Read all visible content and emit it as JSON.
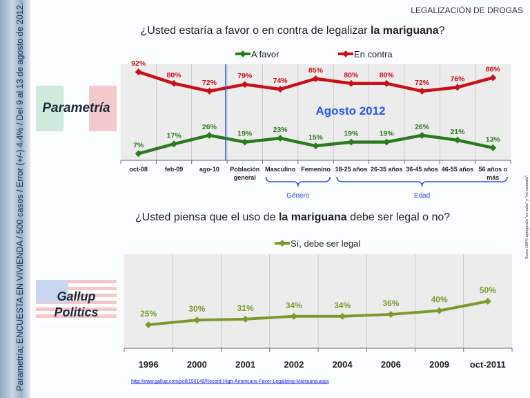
{
  "side_note": "Parametría; ENCUESTA EN VIVIENDA / 500 casos / Error (+/-) 4.4% / Del 9 al 13 de agosto de 2012.",
  "right_note": "Suma 100% agregando \"no sabe\" y \"no contesta\".",
  "section_title": "LEGALIZACIÓN DE DROGAS",
  "logos": {
    "parametria": "Parametría",
    "gallup_line1": "Gallup",
    "gallup_line2": "Politics"
  },
  "source_url": "http://www.gallup.com/poll/150149/Record-High-Americans-Favor-Legalizing-Marijuana.aspx",
  "chart_data": [
    {
      "type": "line",
      "title_pre": "¿Usted estaría a favor o en contra de legalizar ",
      "title_bold": "la mariguana",
      "title_post": "?",
      "annotation": "Agosto 2012",
      "categories": [
        "oct-08",
        "feb-09",
        "ago-10",
        "Población general",
        "Masculino",
        "Femenino",
        "18-25 años",
        "26-35 años",
        "36-45 años",
        "46-55 años",
        "56 años o más"
      ],
      "groups": [
        {
          "label": "Género",
          "from": "Masculino",
          "to": "Femenino"
        },
        {
          "label": "Edad",
          "from": "18-25 años",
          "to": "56 años o más"
        }
      ],
      "ylim": [
        0,
        100
      ],
      "legend_position": "top",
      "grid": "vertical",
      "series": [
        {
          "name": "A favor",
          "color": "#2a7a1e",
          "values": [
            7,
            17,
            26,
            19,
            23,
            15,
            19,
            19,
            26,
            21,
            13
          ]
        },
        {
          "name": "En contra",
          "color": "#c8101a",
          "values": [
            92,
            80,
            72,
            79,
            74,
            85,
            80,
            80,
            72,
            76,
            86
          ]
        }
      ]
    },
    {
      "type": "line",
      "title_pre": "¿Usted piensa que el uso de ",
      "title_bold": "la mariguana",
      "title_post": " debe ser legal o no?",
      "categories": [
        "1996",
        "2000",
        "2001",
        "2002",
        "2004",
        "2006",
        "2009",
        "oct-2011"
      ],
      "ylim": [
        0,
        100
      ],
      "legend_position": "top",
      "grid": "vertical",
      "series": [
        {
          "name": "Sí, debe ser legal",
          "color": "#7a9a2e",
          "values": [
            25,
            30,
            31,
            34,
            34,
            36,
            40,
            50
          ]
        }
      ]
    }
  ]
}
